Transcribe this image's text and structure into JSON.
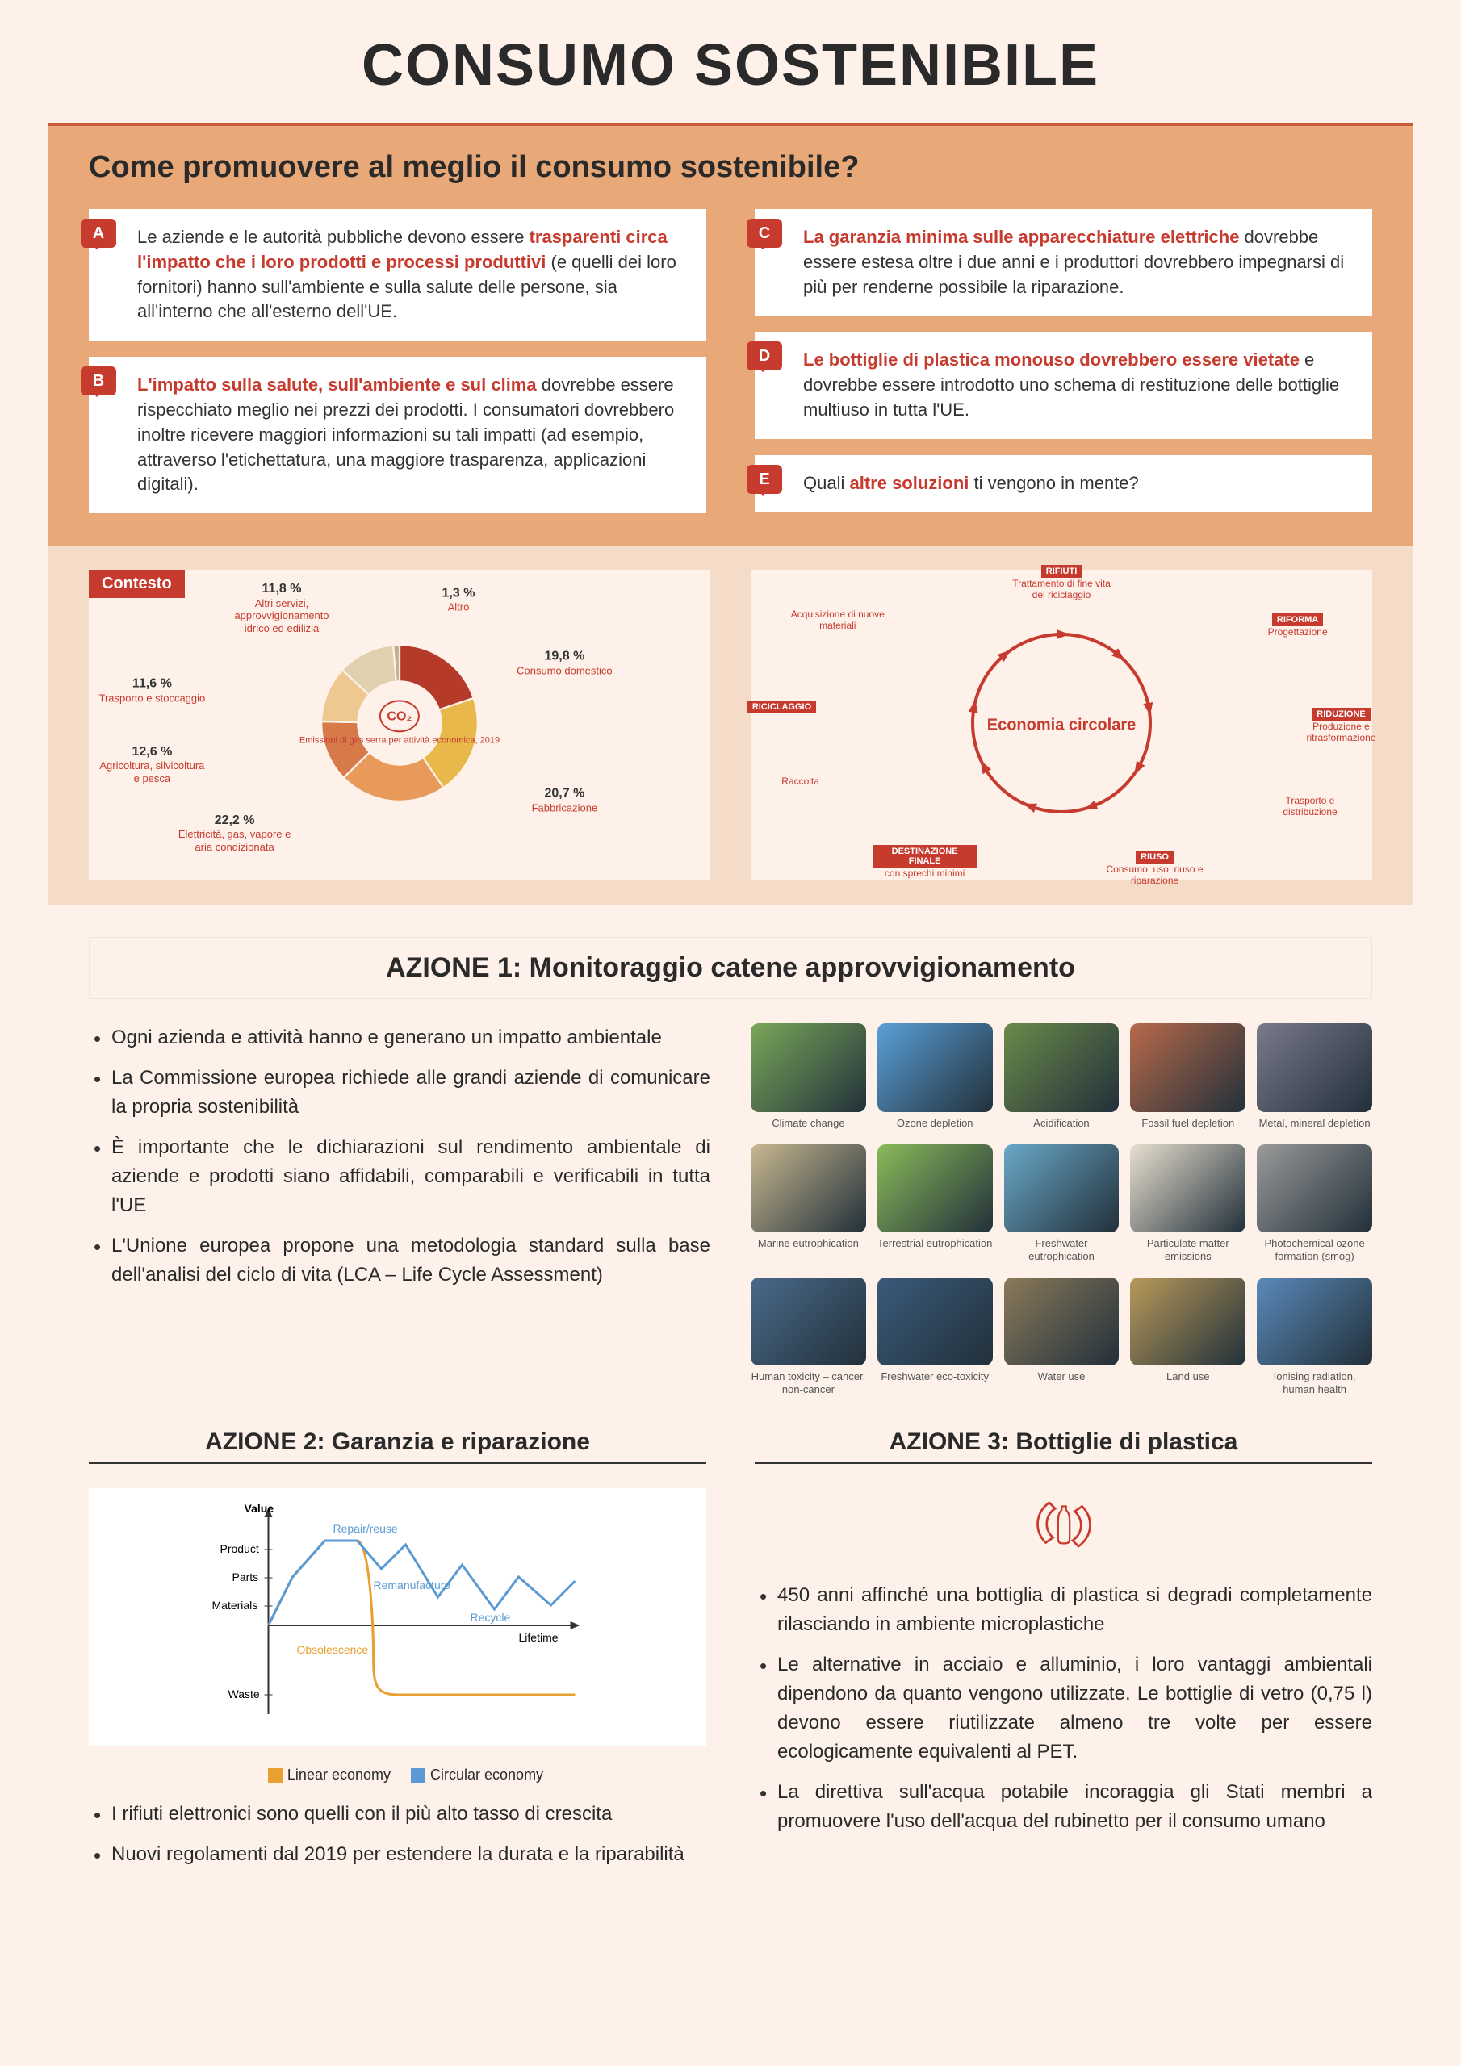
{
  "title": "CONSUMO SOSTENIBILE",
  "subtitle": "Come promuovere al meglio il consumo sostenibile?",
  "cards": {
    "A": {
      "letter": "A",
      "pre": "Le aziende e le autorità pubbliche devono essere ",
      "hl": "trasparenti circa l'impatto che i loro prodotti e processi produttivi",
      "post": " (e quelli dei loro fornitori) hanno sull'ambiente e sulla salute delle persone, sia all'interno che all'esterno dell'UE."
    },
    "B": {
      "letter": "B",
      "hl": "L'impatto sulla salute, sull'ambiente e sul clima",
      "post": " dovrebbe essere rispecchiato meglio nei prezzi dei prodotti. I consumatori dovrebbero inoltre ricevere maggiori informazioni su tali impatti (ad esempio, attraverso l'etichettatura, una maggiore trasparenza, applicazioni digitali)."
    },
    "C": {
      "letter": "C",
      "hl": "La garanzia minima sulle apparecchiature elettriche",
      "post": " dovrebbe essere estesa oltre i due anni e i produttori dovrebbero impegnarsi di più per renderne possibile la riparazione."
    },
    "D": {
      "letter": "D",
      "hl": "Le bottiglie di plastica monouso dovrebbero essere vietate",
      "post": " e dovrebbe essere introdotto uno schema di restituzione delle bottiglie multiuso in tutta l'UE."
    },
    "E": {
      "letter": "E",
      "pre": "Quali ",
      "hl": "altre soluzioni",
      "post": " ti vengono in mente?"
    }
  },
  "contesto": {
    "label": "Contesto",
    "center_top": "CO₂",
    "center_text": "Emissioni di gas serra per attività economica, 2019",
    "slices": [
      {
        "label": "Consumo domestico",
        "pct": "19,8 %",
        "color": "#b63a2a",
        "value": 19.8
      },
      {
        "label": "Fabbricazione",
        "pct": "20,7 %",
        "color": "#e9b84a",
        "value": 20.7
      },
      {
        "label": "Elettricità, gas, vapore e aria condizionata",
        "pct": "22,2 %",
        "color": "#e89a5a",
        "value": 22.2
      },
      {
        "label": "Agricoltura, silvicoltura e pesca",
        "pct": "12,6 %",
        "color": "#d77a4a",
        "value": 12.6
      },
      {
        "label": "Trasporto e stoccaggio",
        "pct": "11,6 %",
        "color": "#eec890",
        "value": 11.6
      },
      {
        "label": "Altri servizi, approvvigionamento idrico ed edilizia",
        "pct": "11,8 %",
        "color": "#e0d0b0",
        "value": 11.8
      },
      {
        "label": "Altro",
        "pct": "1,3 %",
        "color": "#c4b090",
        "value": 1.3
      }
    ]
  },
  "circular": {
    "center": "Economia circolare",
    "nodes": [
      {
        "label": "RIFIUTI",
        "sub": "Trattamento di fine vita del riciclaggio",
        "tag": true
      },
      {
        "label": "RIFORMA",
        "sub": "Progettazione",
        "tag": true
      },
      {
        "label": "RIDUZIONE",
        "sub": "Produzione e ritrasformazione",
        "tag": true
      },
      {
        "label": "",
        "sub": "Trasporto e distribuzione",
        "tag": false
      },
      {
        "label": "RIUSO",
        "sub": "Consumo: uso, riuso e riparazione",
        "tag": true
      },
      {
        "label": "DESTINAZIONE FINALE",
        "sub": "con sprechi minimi",
        "tag": true
      },
      {
        "label": "",
        "sub": "Raccolta",
        "tag": false
      },
      {
        "label": "RICICLAGGIO",
        "sub": "",
        "tag": true
      },
      {
        "label": "",
        "sub": "Acquisizione di nuove materiali",
        "tag": false
      }
    ]
  },
  "action1": {
    "title": "AZIONE 1: Monitoraggio catene approvvigionamento",
    "bullets": [
      "Ogni azienda e attività hanno e generano un impatto ambientale",
      "La Commissione europea richiede alle grandi aziende di comunicare la propria sostenibilità",
      "È importante che le dichiarazioni sul rendimento ambientale di aziende e prodotti siano affidabili, comparabili e verificabili in tutta l'UE",
      "L'Unione europea propone una metodologia standard sulla base dell'analisi del ciclo di vita (LCA – Life Cycle Assessment)"
    ],
    "icons": [
      "Climate change",
      "Ozone depletion",
      "Acidification",
      "Fossil fuel depletion",
      "Metal, mineral depletion",
      "Marine eutrophication",
      "Terrestrial eutrophication",
      "Freshwater eutrophication",
      "Particulate matter emissions",
      "Photochemical ozone formation (smog)",
      "Human toxicity – cancer, non-cancer",
      "Freshwater eco-toxicity",
      "Water use",
      "Land use",
      "Ionising radiation, human health"
    ],
    "icon_colors": [
      "#7aa85a",
      "#5aa0d8",
      "#6a8a4a",
      "#b86a4a",
      "#7a7a8a",
      "#c8b890",
      "#8aba5a",
      "#6aa8c8",
      "#e8e0d0",
      "#9a9a9a",
      "#4a6a8a",
      "#3a5a7a",
      "#8a7a5a",
      "#b89a5a",
      "#5a8aba"
    ]
  },
  "action2": {
    "title": "AZIONE 2: Garanzia e riparazione",
    "chart": {
      "y_labels": [
        "Value",
        "Product",
        "Parts",
        "Materials",
        "Waste"
      ],
      "x_label": "Lifetime",
      "annotations": [
        "Repair/reuse",
        "Remanufacture",
        "Recycle",
        "Obsolescence"
      ],
      "legend": [
        {
          "color": "#e8a030",
          "label": "Linear economy"
        },
        {
          "color": "#5a9ad4",
          "label": "Circular economy"
        }
      ]
    },
    "bullets": [
      "I rifiuti elettronici sono quelli con il più alto tasso di crescita",
      "Nuovi regolamenti dal 2019 per estendere la durata e la riparabilità"
    ]
  },
  "action3": {
    "title": "AZIONE 3: Bottiglie di plastica",
    "bullets": [
      "450 anni affinché una bottiglia di plastica si degradi completamente rilasciando in ambiente microplastiche",
      "Le alternative in acciaio e alluminio, i loro vantaggi ambientali dipendono da quanto vengono utilizzate. Le bottiglie di vetro (0,75 l) devono essere riutilizzate almeno tre volte per essere ecologicamente equivalenti al PET.",
      "La direttiva sull'acqua potabile incoraggia gli Stati membri a promuovere l'uso dell'acqua del rubinetto per il consumo umano"
    ]
  }
}
